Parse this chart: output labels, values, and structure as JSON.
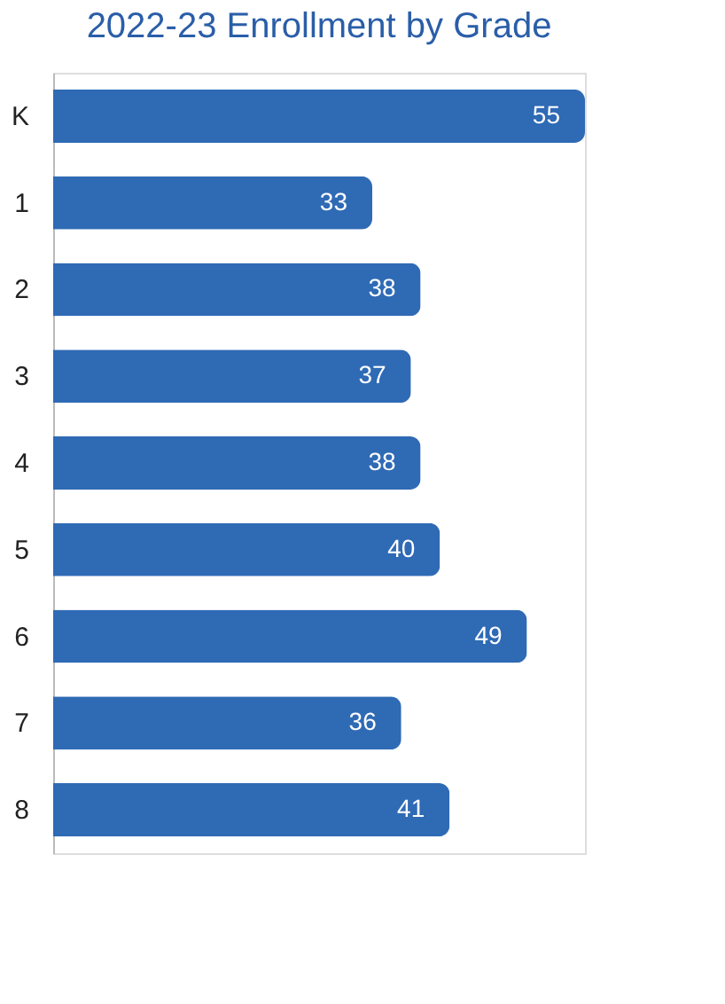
{
  "chart_data": {
    "type": "bar",
    "orientation": "horizontal",
    "title": "2022-23 Enrollment by Grade",
    "categories": [
      "K",
      "1",
      "2",
      "3",
      "4",
      "5",
      "6",
      "7",
      "8"
    ],
    "values": [
      55,
      33,
      38,
      37,
      38,
      40,
      49,
      36,
      41
    ],
    "color": "#2f6ab5",
    "data_labels": true,
    "grid": false
  }
}
